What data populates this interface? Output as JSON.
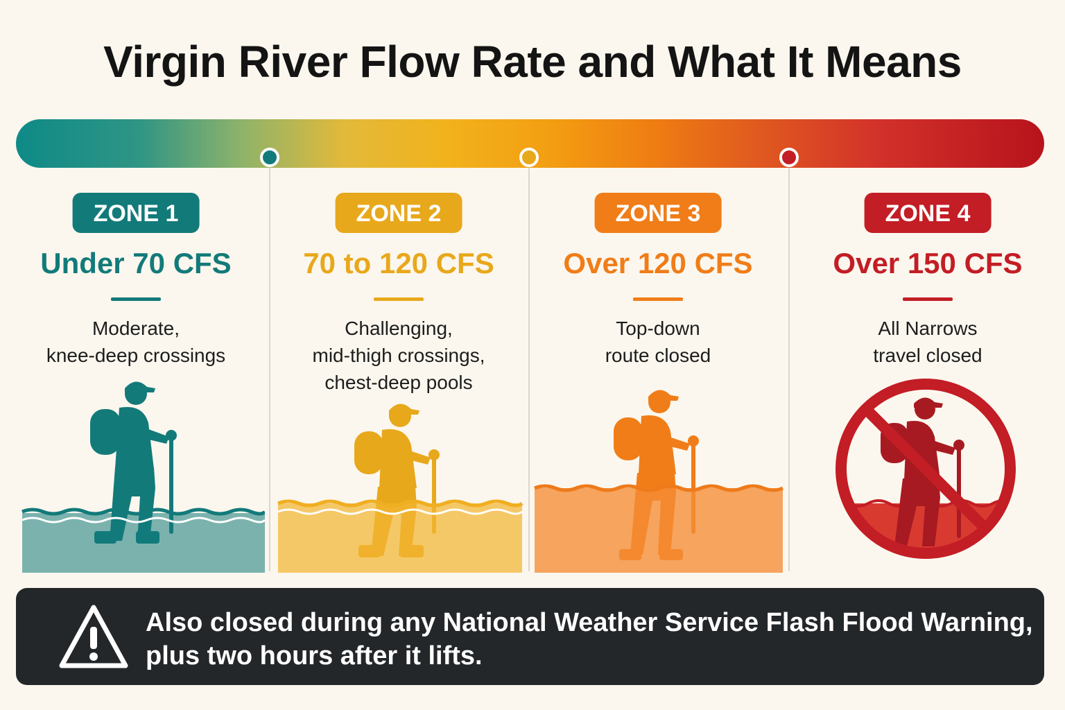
{
  "title": "Virgin River Flow Rate and What It Means",
  "colors": {
    "zone1": "#137a7a",
    "zone2": "#e8a81c",
    "zone3": "#f07d18",
    "zone4": "#c31d25",
    "background": "#fbf7ee",
    "footer": "#23272a"
  },
  "zones": [
    {
      "badge": "ZONE 1",
      "flow": "Under 70 CFS",
      "desc": [
        "Moderate,",
        "knee-deep crossings"
      ],
      "icon": "hiker-knee-deep-icon"
    },
    {
      "badge": "ZONE 2",
      "flow": "70 to 120 CFS",
      "desc": [
        "Challenging,",
        "mid-thigh crossings,",
        "chest-deep pools"
      ],
      "icon": "hiker-mid-thigh-icon"
    },
    {
      "badge": "ZONE 3",
      "flow": "Over 120 CFS",
      "desc": [
        "Top-down",
        "route closed"
      ],
      "icon": "hiker-waist-deep-icon"
    },
    {
      "badge": "ZONE 4",
      "flow": "Over 150 CFS",
      "desc": [
        "All Narrows",
        "travel closed"
      ],
      "icon": "no-entry-hiker-icon"
    }
  ],
  "footer": {
    "icon": "warning-triangle-icon",
    "lines": [
      "Also closed during any National Weather Service Flash Flood Warning,",
      "plus two hours after it lifts."
    ]
  }
}
